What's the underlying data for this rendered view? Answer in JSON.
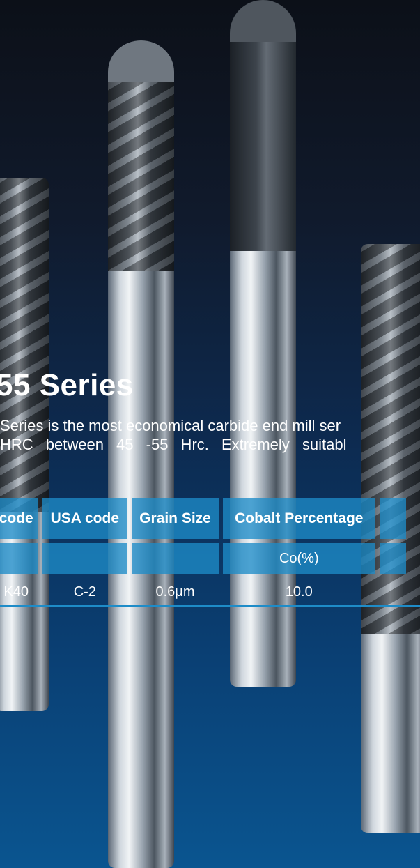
{
  "title": "55 Series",
  "description": {
    "line1": "Series is the most economical carbide end mill ser",
    "line2": "HRC between 45 -55 Hrc. Extremely suitabl"
  },
  "table": {
    "headers": [
      "code",
      "USA code",
      "Grain Size",
      "Cobalt Percentage",
      ""
    ],
    "units": [
      "",
      "",
      "",
      "Co(%)",
      ""
    ],
    "row": [
      "K40",
      "C-2",
      "0.6μm",
      "10.0",
      ""
    ]
  },
  "colors": {
    "accent": "#1e8cc8",
    "background_top": "#0c1018",
    "background_bottom": "#0a5590"
  },
  "images": [
    "end-mill-tools"
  ]
}
